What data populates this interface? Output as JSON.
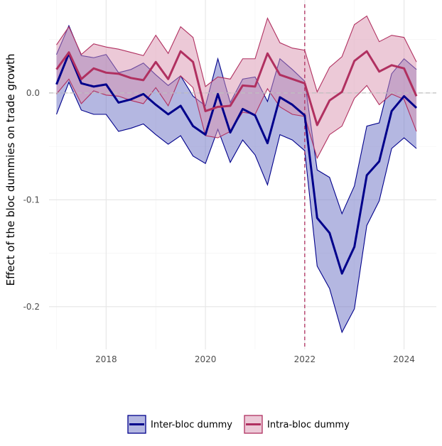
{
  "chart_data": {
    "type": "line",
    "title": "",
    "xlabel": "",
    "ylabel": "Effect of the bloc dummies on trade growth",
    "xlim": [
      2016.85,
      2024.65
    ],
    "ylim": [
      -0.24,
      0.087
    ],
    "x_ticks": [
      2018,
      2020,
      2022,
      2024
    ],
    "x_tick_labels": [
      "2018",
      "2020",
      "2022",
      "2024"
    ],
    "y_ticks": [
      -0.2,
      -0.1,
      0.0
    ],
    "y_tick_labels": [
      "-0.2",
      "-0.1",
      "0.0"
    ],
    "reference_hline": 0.0,
    "reference_vline": 2022,
    "grid": true,
    "legend_position": "bottom",
    "x": [
      2017.0,
      2017.25,
      2017.5,
      2017.75,
      2018.0,
      2018.25,
      2018.5,
      2018.75,
      2019.0,
      2019.25,
      2019.5,
      2019.75,
      2020.0,
      2020.25,
      2020.5,
      2020.75,
      2021.0,
      2021.25,
      2021.5,
      2021.75,
      2022.0,
      2022.25,
      2022.5,
      2022.75,
      2023.0,
      2023.25,
      2023.5,
      2023.75,
      2024.0,
      2024.25
    ],
    "series": [
      {
        "name": "Inter-bloc dummy",
        "color": "#00008B",
        "fill": "#6A6FC4",
        "values": [
          0.008,
          0.037,
          0.009,
          0.006,
          0.008,
          -0.009,
          -0.006,
          -0.001,
          -0.011,
          -0.02,
          -0.012,
          -0.031,
          -0.039,
          -0.001,
          -0.037,
          -0.015,
          -0.021,
          -0.047,
          -0.004,
          -0.011,
          -0.021,
          -0.117,
          -0.131,
          -0.169,
          -0.144,
          -0.077,
          -0.064,
          -0.017,
          -0.003,
          -0.014
        ],
        "lower": [
          -0.02,
          0.01,
          -0.016,
          -0.02,
          -0.02,
          -0.036,
          -0.033,
          -0.029,
          -0.039,
          -0.048,
          -0.04,
          -0.059,
          -0.066,
          -0.034,
          -0.065,
          -0.044,
          -0.058,
          -0.086,
          -0.039,
          -0.044,
          -0.054,
          -0.162,
          -0.183,
          -0.224,
          -0.202,
          -0.124,
          -0.101,
          -0.052,
          -0.042,
          -0.052
        ],
        "upper": [
          0.036,
          0.063,
          0.035,
          0.033,
          0.036,
          0.019,
          0.022,
          0.028,
          0.017,
          0.007,
          0.016,
          -0.003,
          -0.012,
          0.032,
          -0.009,
          0.013,
          0.015,
          -0.008,
          0.032,
          0.022,
          0.011,
          -0.072,
          -0.079,
          -0.113,
          -0.087,
          -0.031,
          -0.028,
          0.018,
          0.032,
          0.022
        ]
      },
      {
        "name": "Intra-bloc dummy",
        "color": "#B03060",
        "fill": "#D993B0",
        "values": [
          0.022,
          0.038,
          0.013,
          0.023,
          0.019,
          0.018,
          0.014,
          0.012,
          0.029,
          0.013,
          0.039,
          0.029,
          -0.017,
          -0.013,
          -0.012,
          0.007,
          0.006,
          0.037,
          0.017,
          0.013,
          0.009,
          -0.03,
          -0.007,
          0.001,
          0.03,
          0.039,
          0.02,
          0.026,
          0.023,
          -0.003
        ],
        "lower": [
          -0.001,
          0.013,
          -0.01,
          0.002,
          -0.002,
          -0.003,
          -0.007,
          -0.01,
          0.005,
          -0.012,
          0.016,
          0.005,
          -0.04,
          -0.042,
          -0.036,
          -0.018,
          -0.02,
          0.004,
          -0.013,
          -0.02,
          -0.022,
          -0.061,
          -0.039,
          -0.031,
          -0.005,
          0.007,
          -0.011,
          -0.001,
          -0.006,
          -0.036
        ],
        "upper": [
          0.045,
          0.062,
          0.036,
          0.046,
          0.043,
          0.041,
          0.038,
          0.035,
          0.054,
          0.037,
          0.062,
          0.052,
          0.006,
          0.015,
          0.013,
          0.032,
          0.032,
          0.07,
          0.047,
          0.042,
          0.04,
          0.001,
          0.024,
          0.034,
          0.064,
          0.072,
          0.048,
          0.054,
          0.052,
          0.029
        ]
      }
    ]
  }
}
